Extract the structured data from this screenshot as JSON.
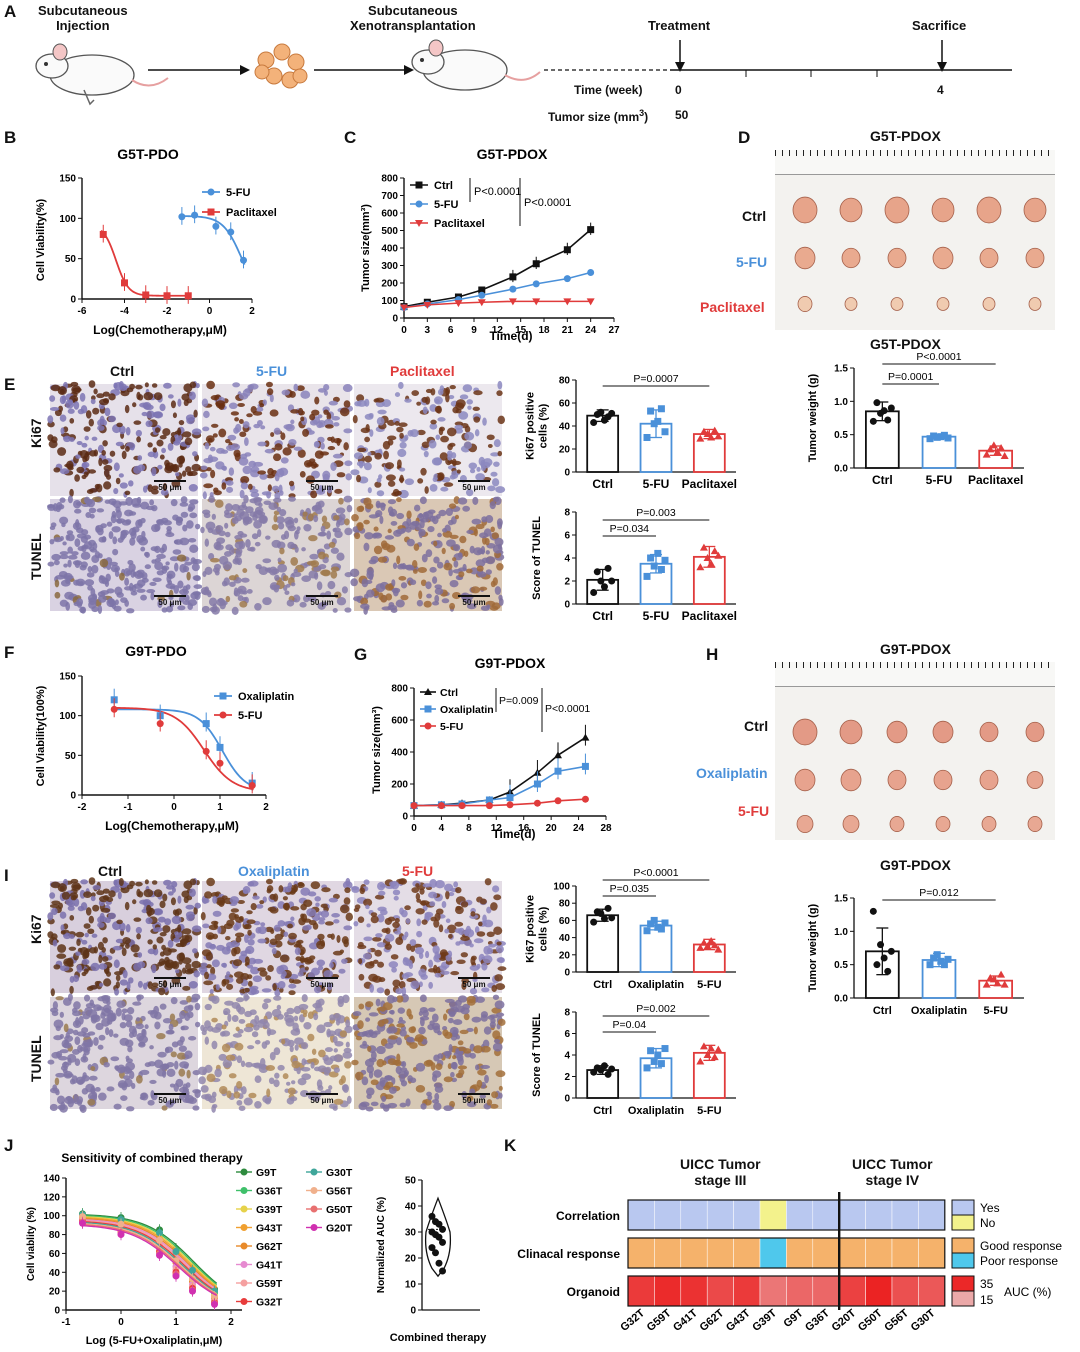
{
  "panelA": {
    "label": "A",
    "inj": "Subcutaneous\nInjection",
    "xeno": "Subcutaneous\nXenotransplantation",
    "treatment": "Treatment",
    "sacrifice": "Sacrifice",
    "time_label": "Time (week)",
    "size_label": "Tumor size (mm",
    "size_sup": "3",
    "size_close": ")",
    "t0": "0",
    "t4": "4",
    "s50": "50"
  },
  "panelB": {
    "label": "B",
    "title": "G5T-PDO",
    "ylabel": "Cell Viability(%)",
    "xlabel": "Log(Chemotherapy,μM)",
    "legend": [
      "5-FU",
      "Paclitaxel"
    ],
    "yticks": [
      "0",
      "50",
      "100",
      "150"
    ],
    "xticks": [
      "-6",
      "-4",
      "-2",
      "0",
      "2"
    ]
  },
  "panelC": {
    "label": "C",
    "title": "G5T-PDOX",
    "ylabel": "Tumor size(mm³)",
    "xlabel": "Time(d)",
    "legend": [
      "Ctrl",
      "5-FU",
      "Paclitaxel"
    ],
    "p1": "P<0.0001",
    "p2": "P<0.0001",
    "yticks": [
      "0",
      "100",
      "200",
      "300",
      "400",
      "500",
      "600",
      "700",
      "800"
    ],
    "xticks": [
      "0",
      "3",
      "6",
      "9",
      "12",
      "15",
      "18",
      "21",
      "24",
      "27"
    ]
  },
  "panelD": {
    "label": "D",
    "title": "G5T-PDOX",
    "rows": [
      "Ctrl",
      "5-FU",
      "Paclitaxel"
    ],
    "bar_title": "G5T-PDOX",
    "ylabel": "Tumor weight (g)",
    "cats": [
      "Ctrl",
      "5-FU",
      "Paclitaxel"
    ],
    "p1": "P=0.0001",
    "p2": "P<0.0001",
    "yticks": [
      "0.0",
      "0.5",
      "1.0",
      "1.5"
    ]
  },
  "panelE": {
    "label": "E",
    "cols": [
      "Ctrl",
      "5-FU",
      "Paclitaxel"
    ],
    "rows": [
      "Ki67",
      "TUNEL"
    ],
    "scale": "50 μm",
    "ki_ylabel": "Ki67 positive\ncells (%)",
    "ki_cats": [
      "Ctrl",
      "5-FU",
      "Paclitaxel"
    ],
    "ki_p": "P=0.0007",
    "ki_yticks": [
      "0",
      "20",
      "40",
      "60",
      "80"
    ],
    "tu_ylabel": "Score of TUNEL",
    "tu_cats": [
      "Ctrl",
      "5-FU",
      "Paclitaxel"
    ],
    "tu_p1": "P=0.034",
    "tu_p2": "P=0.003",
    "tu_yticks": [
      "0",
      "2",
      "4",
      "6",
      "8"
    ]
  },
  "panelF": {
    "label": "F",
    "title": "G9T-PDO",
    "ylabel": "Cell Viability(100%)",
    "xlabel": "Log(Chemotherapy,μM)",
    "legend": [
      "Oxaliplatin",
      "5-FU"
    ],
    "yticks": [
      "0",
      "50",
      "100",
      "150"
    ],
    "xticks": [
      "-2",
      "-1",
      "0",
      "1",
      "2"
    ]
  },
  "panelG": {
    "label": "G",
    "title": "G9T-PDOX",
    "ylabel": "Tumor size(mm³)",
    "xlabel": "Time(d)",
    "legend": [
      "Ctrl",
      "Oxaliplatin",
      "5-FU"
    ],
    "p1": "P=0.009",
    "p2": "P<0.0001",
    "yticks": [
      "0",
      "200",
      "400",
      "600",
      "800"
    ],
    "xticks": [
      "0",
      "4",
      "8",
      "12",
      "16",
      "20",
      "24",
      "28"
    ]
  },
  "panelH": {
    "label": "H",
    "title": "G9T-PDOX",
    "rows": [
      "Ctrl",
      "Oxaliplatin",
      "5-FU"
    ],
    "bar_title": "G9T-PDOX",
    "ylabel": "Tumor weight (g)",
    "cats": [
      "Ctrl",
      "Oxaliplatin",
      "5-FU"
    ],
    "p1": "P=0.012",
    "yticks": [
      "0.0",
      "0.5",
      "1.0",
      "1.5"
    ]
  },
  "panelI": {
    "label": "I",
    "cols": [
      "Ctrl",
      "Oxaliplatin",
      "5-FU"
    ],
    "rows": [
      "Ki67",
      "TUNEL"
    ],
    "scale": "50 μm",
    "ki_ylabel": "Ki67 positive\ncells (%)",
    "ki_cats": [
      "Ctrl",
      "Oxaliplatin",
      "5-FU"
    ],
    "ki_p1": "P=0.035",
    "ki_p2": "P<0.0001",
    "ki_yticks": [
      "0",
      "20",
      "40",
      "60",
      "80",
      "100"
    ],
    "tu_ylabel": "Score of TUNEL",
    "tu_cats": [
      "Ctrl",
      "Oxaliplatin",
      "5-FU"
    ],
    "tu_p1": "P=0.04",
    "tu_p2": "P=0.002",
    "tu_yticks": [
      "0",
      "2",
      "4",
      "6",
      "8"
    ]
  },
  "panelJ": {
    "label": "J",
    "title": "Sensitivity of combined therapy",
    "ylabel": "Cell viablity (%)",
    "xlabel": "Log (5-FU+Oxaliplatin,μM)",
    "legend1": [
      "G9T",
      "G36T",
      "G39T",
      "G43T",
      "G62T",
      "G41T",
      "G59T",
      "G32T"
    ],
    "legend2": [
      "G30T",
      "G56T",
      "G50T",
      "G20T"
    ],
    "yticks": [
      "0",
      "20",
      "40",
      "60",
      "80",
      "100",
      "120",
      "140"
    ],
    "xticks": [
      "-1",
      "0",
      "1",
      "2"
    ],
    "v_ylabel": "Normalized AUC (%)",
    "v_xlabel": "Combined therapy",
    "v_yticks": [
      "0",
      "10",
      "20",
      "30",
      "40",
      "50"
    ]
  },
  "panelK": {
    "label": "K",
    "stage3": "UICC Tumor\nstage III",
    "stage4": "UICC Tumor\nstage IV",
    "rows": [
      "Correlation",
      "Clinacal response",
      "Organoid"
    ],
    "samples": [
      "G32T",
      "G59T",
      "G41T",
      "G62T",
      "G43T",
      "G39T",
      "G9T",
      "G36T",
      "G20T",
      "G50T",
      "G56T",
      "G30T"
    ],
    "leg_yes": "Yes",
    "leg_no": "No",
    "leg_good": "Good response",
    "leg_poor": "Poor response",
    "leg_35": "35",
    "leg_15": "15",
    "leg_auc": "AUC (%)"
  },
  "colors": {
    "ctrl": "#111111",
    "fu": "#4a90d9",
    "pac": "#e03b3b",
    "ox": "#4a90d9",
    "yes": "#b9c8f0",
    "no": "#f3f28c",
    "good": "#f5b26b",
    "poor": "#4fc8ec"
  },
  "chart_data": [
    {
      "type": "scatter",
      "title": "G5T-PDO",
      "xlabel": "Log(Chemotherapy,μM)",
      "ylabel": "Cell Viability(%)",
      "xlim": [
        -6,
        2
      ],
      "ylim": [
        0,
        150
      ],
      "series": [
        {
          "name": "5-FU",
          "x": [
            -1.3,
            -0.7,
            0.3,
            1.0,
            1.6
          ],
          "y": [
            102,
            104,
            90,
            83,
            48
          ]
        },
        {
          "name": "Paclitaxel",
          "x": [
            -5,
            -4,
            -3,
            -2,
            -1
          ],
          "y": [
            80,
            20,
            5,
            4,
            4
          ]
        }
      ]
    },
    {
      "type": "line",
      "title": "G5T-PDOX",
      "xlabel": "Time(d)",
      "ylabel": "Tumor size(mm³)",
      "xlim": [
        0,
        27
      ],
      "ylim": [
        0,
        800
      ],
      "x": [
        0,
        3,
        7,
        10,
        14,
        17,
        21,
        24
      ],
      "series": [
        {
          "name": "Ctrl",
          "values": [
            65,
            90,
            120,
            160,
            235,
            310,
            390,
            505
          ]
        },
        {
          "name": "5-FU",
          "values": [
            60,
            80,
            105,
            130,
            165,
            195,
            225,
            260
          ]
        },
        {
          "name": "Paclitaxel",
          "values": [
            60,
            75,
            85,
            90,
            95,
            95,
            95,
            95
          ]
        }
      ]
    },
    {
      "type": "bar",
      "title": "G5T-PDOX",
      "ylabel": "Tumor weight (g)",
      "categories": [
        "Ctrl",
        "5-FU",
        "Paclitaxel"
      ],
      "values": [
        0.85,
        0.47,
        0.26
      ],
      "ylim": [
        0,
        1.5
      ]
    },
    {
      "type": "bar",
      "ylabel": "Ki67 positive cells (%)",
      "categories": [
        "Ctrl",
        "5-FU",
        "Paclitaxel"
      ],
      "values": [
        49,
        42,
        33
      ],
      "ylim": [
        0,
        80
      ]
    },
    {
      "type": "bar",
      "ylabel": "Score of TUNEL",
      "categories": [
        "Ctrl",
        "5-FU",
        "Paclitaxel"
      ],
      "values": [
        2.1,
        3.5,
        4.1
      ],
      "ylim": [
        0,
        8
      ]
    },
    {
      "type": "scatter",
      "title": "G9T-PDO",
      "xlabel": "Log(Chemotherapy,μM)",
      "ylabel": "Cell Viability(100%)",
      "xlim": [
        -2,
        2
      ],
      "ylim": [
        0,
        150
      ],
      "series": [
        {
          "name": "Oxaliplatin",
          "x": [
            -1.3,
            -0.3,
            0.7,
            1.0,
            1.7
          ],
          "y": [
            120,
            100,
            90,
            60,
            15
          ]
        },
        {
          "name": "5-FU",
          "x": [
            -1.3,
            -0.3,
            0.7,
            1.0,
            1.7
          ],
          "y": [
            108,
            90,
            55,
            40,
            12
          ]
        }
      ]
    },
    {
      "type": "line",
      "title": "G9T-PDOX",
      "xlabel": "Time(d)",
      "ylabel": "Tumor size(mm³)",
      "xlim": [
        0,
        28
      ],
      "ylim": [
        0,
        800
      ],
      "x": [
        0,
        4,
        7,
        11,
        14,
        18,
        21,
        25
      ],
      "series": [
        {
          "name": "Ctrl",
          "values": [
            65,
            70,
            80,
            100,
            150,
            270,
            380,
            490
          ]
        },
        {
          "name": "Oxaliplatin",
          "values": [
            65,
            70,
            75,
            100,
            115,
            200,
            280,
            310
          ]
        },
        {
          "name": "5-FU",
          "values": [
            65,
            65,
            65,
            65,
            70,
            80,
            95,
            105
          ]
        }
      ]
    },
    {
      "type": "bar",
      "title": "G9T-PDOX",
      "ylabel": "Tumor weight (g)",
      "categories": [
        "Ctrl",
        "Oxaliplatin",
        "5-FU"
      ],
      "values": [
        0.7,
        0.57,
        0.26
      ],
      "ylim": [
        0,
        1.5
      ]
    },
    {
      "type": "bar",
      "ylabel": "Ki67 positive cells (%)",
      "categories": [
        "Ctrl",
        "Oxaliplatin",
        "5-FU"
      ],
      "values": [
        66,
        54,
        32
      ],
      "ylim": [
        0,
        100
      ]
    },
    {
      "type": "bar",
      "ylabel": "Score of TUNEL",
      "categories": [
        "Ctrl",
        "Oxaliplatin",
        "5-FU"
      ],
      "values": [
        2.6,
        3.7,
        4.2
      ],
      "ylim": [
        0,
        8
      ]
    },
    {
      "type": "line",
      "title": "Sensitivity of combined therapy",
      "xlabel": "Log (5-FU+Oxaliplatin,μM)",
      "ylabel": "Cell viablity (%)",
      "xlim": [
        -1,
        2.2
      ],
      "ylim": [
        0,
        140
      ],
      "x": [
        -0.7,
        0,
        0.7,
        1,
        1.3,
        1.7
      ],
      "series": [
        {
          "name": "G9T",
          "values": [
            102,
            98,
            85,
            65,
            45,
            22
          ]
        },
        {
          "name": "G36T",
          "values": [
            100,
            95,
            80,
            60,
            40,
            18
          ]
        },
        {
          "name": "G39T",
          "values": [
            98,
            92,
            76,
            55,
            36,
            15
          ]
        },
        {
          "name": "G43T",
          "values": [
            100,
            93,
            75,
            52,
            33,
            13
          ]
        },
        {
          "name": "G62T",
          "values": [
            97,
            90,
            72,
            50,
            30,
            12
          ]
        },
        {
          "name": "G41T",
          "values": [
            96,
            88,
            68,
            46,
            27,
            10
          ]
        },
        {
          "name": "G59T",
          "values": [
            95,
            86,
            65,
            43,
            25,
            9
          ]
        },
        {
          "name": "G32T",
          "values": [
            94,
            84,
            62,
            40,
            23,
            8
          ]
        },
        {
          "name": "G30T",
          "values": [
            101,
            96,
            82,
            62,
            42,
            20
          ]
        },
        {
          "name": "G56T",
          "values": [
            99,
            91,
            74,
            52,
            33,
            14
          ]
        },
        {
          "name": "G50T",
          "values": [
            93,
            82,
            60,
            38,
            21,
            7
          ]
        },
        {
          "name": "G20T",
          "values": [
            92,
            80,
            58,
            36,
            20,
            6
          ]
        }
      ]
    },
    {
      "type": "heatmap",
      "title": "",
      "categories": [
        "G32T",
        "G59T",
        "G41T",
        "G62T",
        "G43T",
        "G39T",
        "G9T",
        "G36T",
        "G20T",
        "G50T",
        "G56T",
        "G30T"
      ],
      "rows": [
        {
          "name": "Correlation",
          "values": [
            "Yes",
            "Yes",
            "Yes",
            "Yes",
            "Yes",
            "No",
            "Yes",
            "Yes",
            "Yes",
            "Yes",
            "Yes",
            "Yes"
          ]
        },
        {
          "name": "Clinacal response",
          "values": [
            "Good",
            "Good",
            "Good",
            "Good",
            "Good",
            "Poor",
            "Good",
            "Good",
            "Good",
            "Good",
            "Good",
            "Good"
          ]
        },
        {
          "name": "Organoid",
          "values": [
            30,
            32,
            31,
            28,
            30,
            22,
            24,
            24,
            29,
            33,
            27,
            26
          ]
        }
      ]
    }
  ]
}
